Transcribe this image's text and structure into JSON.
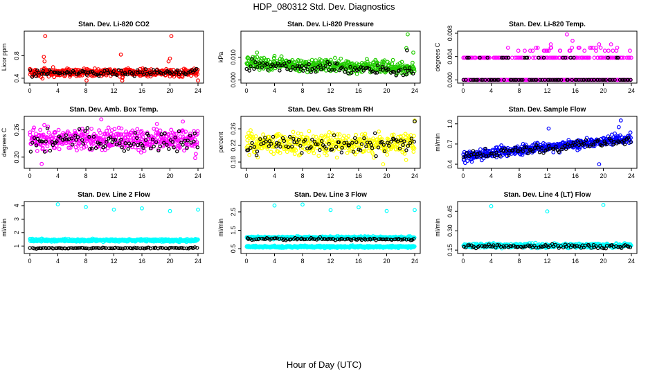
{
  "figure": {
    "title": "HDP_080312  Std. Dev. Diagnostics",
    "xlabel": "Hour of Day (UTC)"
  },
  "colors": {
    "reference": "#000000",
    "red": "#ff0000",
    "green": "#22cc00",
    "magenta": "#ff00ff",
    "yellow": "#ffff00",
    "blue": "#0000ff",
    "cyan": "#00ffff"
  },
  "chart_data": [
    {
      "type": "scatter",
      "title": "Stan. Dev. Li-820 CO2",
      "ylabel": "Licor ppm",
      "xlim": [
        0,
        24
      ],
      "ylim": [
        0.35,
        1.2
      ],
      "xticks": [
        "0",
        "4",
        "8",
        "12",
        "16",
        "20",
        "24"
      ],
      "yticks": [
        {
          "v": 0.4,
          "label": "0.4"
        },
        {
          "v": 0.8,
          "label": "0.8"
        }
      ],
      "series": [
        {
          "name": "lines",
          "color": "red",
          "base": 0.5,
          "spread": 0.05,
          "trend": 0.0,
          "outliers": [
            {
              "x": 2.0,
              "y": 0.78
            },
            {
              "x": 2.1,
              "y": 0.7
            },
            {
              "x": 2.2,
              "y": 1.15
            },
            {
              "x": 13.0,
              "y": 0.82
            },
            {
              "x": 20.2,
              "y": 1.15
            },
            {
              "x": 20.0,
              "y": 0.75
            },
            {
              "x": 19.8,
              "y": 0.7
            },
            {
              "x": 24.0,
              "y": 0.36
            },
            {
              "x": 8.1,
              "y": 0.36
            },
            {
              "x": 13.2,
              "y": 0.36
            }
          ]
        },
        {
          "name": "sample",
          "color": "reference",
          "base": 0.5,
          "spread": 0.04,
          "trend": 0.0,
          "outliers": []
        }
      ]
    },
    {
      "type": "scatter",
      "title": "Stan. Dev. Li-820 Pressure",
      "ylabel": "kPa",
      "xlim": [
        0,
        24
      ],
      "ylim": [
        -0.0005,
        0.0205
      ],
      "xticks": [
        "0",
        "4",
        "8",
        "12",
        "16",
        "20",
        "24"
      ],
      "yticks": [
        {
          "v": 0.0,
          "label": "0.000"
        },
        {
          "v": 0.01,
          "label": "0.010"
        }
      ],
      "series": [
        {
          "name": "lines",
          "color": "green",
          "base": 0.0075,
          "spread": 0.002,
          "trend": -0.0001,
          "outliers": [
            {
              "x": 23.0,
              "y": 0.02
            },
            {
              "x": 22.8,
              "y": 0.014
            },
            {
              "x": 1.5,
              "y": 0.012
            },
            {
              "x": 23.8,
              "y": 0.012
            }
          ]
        },
        {
          "name": "sample",
          "color": "reference",
          "base": 0.0065,
          "spread": 0.0018,
          "trend": -0.0001,
          "outliers": [
            {
              "x": 22.9,
              "y": 0.013
            }
          ]
        }
      ]
    },
    {
      "type": "scatter",
      "title": "Stan. Dev. Li-820 Temp.",
      "ylabel": "degrees C",
      "xlim": [
        0,
        24
      ],
      "ylim": [
        -0.0002,
        0.008
      ],
      "xticks": [
        "0",
        "4",
        "8",
        "12",
        "16",
        "20",
        "24"
      ],
      "yticks": [
        {
          "v": 0.0,
          "label": "0.000"
        },
        {
          "v": 0.004,
          "label": "0.004"
        },
        {
          "v": 0.008,
          "label": "0.008"
        }
      ],
      "levels": [
        0.0,
        0.0038,
        0.005,
        0.0055
      ],
      "series": [
        {
          "name": "lines",
          "color": "magenta",
          "base": 0.0,
          "spread": 0.0,
          "trend": 0.0,
          "outliers": [
            {
              "x": 14.8,
              "y": 0.0078
            },
            {
              "x": 15.6,
              "y": 0.0067
            },
            {
              "x": 12.5,
              "y": 0.0061
            },
            {
              "x": 19.4,
              "y": 0.0061
            },
            {
              "x": 21.1,
              "y": 0.0061
            }
          ]
        },
        {
          "name": "sample",
          "color": "reference",
          "base": 0.0,
          "spread": 0.0,
          "trend": 0.0,
          "outliers": []
        }
      ]
    },
    {
      "type": "scatter",
      "title": "Stan. Dev. Amb. Box Temp.",
      "ylabel": "degrees C",
      "xlim": [
        0,
        24
      ],
      "ylim": [
        0.18,
        0.285
      ],
      "xticks": [
        "0",
        "4",
        "8",
        "12",
        "16",
        "20",
        "24"
      ],
      "yticks": [
        {
          "v": 0.2,
          "label": "0.20"
        },
        {
          "v": 0.26,
          "label": "0.26"
        }
      ],
      "series": [
        {
          "name": "lines",
          "color": "magenta",
          "base": 0.24,
          "spread": 0.018,
          "trend": 0.0,
          "outliers": [
            {
              "x": 10.2,
              "y": 0.283
            },
            {
              "x": 1.7,
              "y": 0.185
            },
            {
              "x": 23.6,
              "y": 0.198
            }
          ]
        },
        {
          "name": "sample",
          "color": "reference",
          "base": 0.235,
          "spread": 0.018,
          "trend": 0.0,
          "outliers": []
        }
      ]
    },
    {
      "type": "scatter",
      "title": "Stan. Dev. Gas Stream RH",
      "ylabel": "percent",
      "xlim": [
        0,
        24
      ],
      "ylim": [
        0.17,
        0.285
      ],
      "xticks": [
        "0",
        "4",
        "8",
        "12",
        "16",
        "20",
        "24"
      ],
      "yticks": [
        {
          "v": 0.18,
          "label": "0.18"
        },
        {
          "v": 0.22,
          "label": "0.22"
        },
        {
          "v": 0.26,
          "label": "0.26"
        }
      ],
      "series": [
        {
          "name": "lines",
          "color": "yellow",
          "base": 0.225,
          "spread": 0.018,
          "trend": 0.0,
          "outliers": [
            {
              "x": 24.0,
              "y": 0.28
            },
            {
              "x": 19.5,
              "y": 0.175
            }
          ]
        },
        {
          "name": "sample",
          "color": "reference",
          "base": 0.222,
          "spread": 0.016,
          "trend": 0.0,
          "outliers": [
            {
              "x": 24.0,
              "y": 0.278
            }
          ]
        }
      ]
    },
    {
      "type": "scatter",
      "title": "Stan. Dev. Sample Flow",
      "ylabel": "ml/min",
      "xlim": [
        0,
        24
      ],
      "ylim": [
        0.37,
        1.08
      ],
      "xticks": [
        "0",
        "4",
        "8",
        "12",
        "16",
        "20",
        "24"
      ],
      "yticks": [
        {
          "v": 0.4,
          "label": "0.4"
        },
        {
          "v": 0.7,
          "label": "0.7"
        },
        {
          "v": 1.0,
          "label": "1.0"
        }
      ],
      "series": [
        {
          "name": "lines",
          "color": "blue",
          "base": 0.52,
          "spread": 0.05,
          "trend": 0.011,
          "outliers": [
            {
              "x": 22.5,
              "y": 1.05
            },
            {
              "x": 22.2,
              "y": 0.95
            },
            {
              "x": 12.2,
              "y": 0.93
            },
            {
              "x": 19.4,
              "y": 0.4
            }
          ]
        },
        {
          "name": "sample",
          "color": "reference",
          "base": 0.52,
          "spread": 0.04,
          "trend": 0.01,
          "outliers": []
        }
      ]
    },
    {
      "type": "scatter",
      "title": "Stan. Dev. Line 2 Flow",
      "ylabel": "ml/min",
      "xlim": [
        0,
        24
      ],
      "ylim": [
        0.6,
        4.15
      ],
      "xticks": [
        "0",
        "4",
        "8",
        "12",
        "16",
        "20",
        "24"
      ],
      "yticks": [
        {
          "v": 1,
          "label": "1"
        },
        {
          "v": 2,
          "label": "2"
        },
        {
          "v": 3,
          "label": "3"
        },
        {
          "v": 4,
          "label": "4"
        }
      ],
      "series": [
        {
          "name": "lines",
          "color": "cyan",
          "base": 1.42,
          "spread": 0.07,
          "trend": 0.0,
          "outliers": [
            {
              "x": 4.0,
              "y": 4.1
            },
            {
              "x": 8.0,
              "y": 3.9
            },
            {
              "x": 12.0,
              "y": 3.7
            },
            {
              "x": 16.0,
              "y": 3.8
            },
            {
              "x": 20.0,
              "y": 3.6
            },
            {
              "x": 24.0,
              "y": 3.7
            }
          ]
        },
        {
          "name": "sample",
          "color": "reference",
          "base": 0.85,
          "spread": 0.03,
          "trend": 0.0,
          "outliers": []
        }
      ]
    },
    {
      "type": "scatter",
      "title": "Stan. Dev. Line 3 Flow",
      "ylabel": "ml/min",
      "xlim": [
        0,
        24
      ],
      "ylim": [
        0.35,
        2.95
      ],
      "xticks": [
        "0",
        "4",
        "8",
        "12",
        "16",
        "20",
        "24"
      ],
      "yticks": [
        {
          "v": 0.5,
          "label": "0.5"
        },
        {
          "v": 1.5,
          "label": "1.5"
        },
        {
          "v": 2.5,
          "label": "2.5"
        }
      ],
      "series": [
        {
          "name": "lines",
          "color": "cyan",
          "base": 0.6,
          "spread": 0.04,
          "trend": 0.0,
          "outliers": [
            {
              "x": 4.0,
              "y": 2.85
            },
            {
              "x": 8.0,
              "y": 2.9
            },
            {
              "x": 12.0,
              "y": 2.6
            },
            {
              "x": 16.0,
              "y": 2.75
            },
            {
              "x": 20.0,
              "y": 2.55
            },
            {
              "x": 24.0,
              "y": 2.6
            }
          ]
        },
        {
          "name": "lines-upper",
          "color": "cyan",
          "base": 1.1,
          "spread": 0.05,
          "trend": 0.0,
          "outliers": []
        },
        {
          "name": "sample",
          "color": "reference",
          "base": 1.02,
          "spread": 0.05,
          "trend": 0.0,
          "outliers": []
        }
      ]
    },
    {
      "type": "scatter",
      "title": "Stan. Dev. Line 4 (LT) Flow",
      "ylabel": "ml/min",
      "xlim": [
        0,
        24
      ],
      "ylim": [
        0.14,
        0.51
      ],
      "xticks": [
        "0",
        "4",
        "8",
        "12",
        "16",
        "20",
        "24"
      ],
      "yticks": [
        {
          "v": 0.15,
          "label": "0.15"
        },
        {
          "v": 0.3,
          "label": "0.30"
        },
        {
          "v": 0.45,
          "label": "0.45"
        }
      ],
      "series": [
        {
          "name": "lines",
          "color": "cyan",
          "base": 0.185,
          "spread": 0.012,
          "trend": 0.0,
          "outliers": [
            {
              "x": 4.0,
              "y": 0.49
            },
            {
              "x": 12.0,
              "y": 0.45
            },
            {
              "x": 20.0,
              "y": 0.5
            }
          ]
        },
        {
          "name": "sample",
          "color": "reference",
          "base": 0.18,
          "spread": 0.01,
          "trend": 0.0,
          "outliers": []
        }
      ]
    }
  ]
}
